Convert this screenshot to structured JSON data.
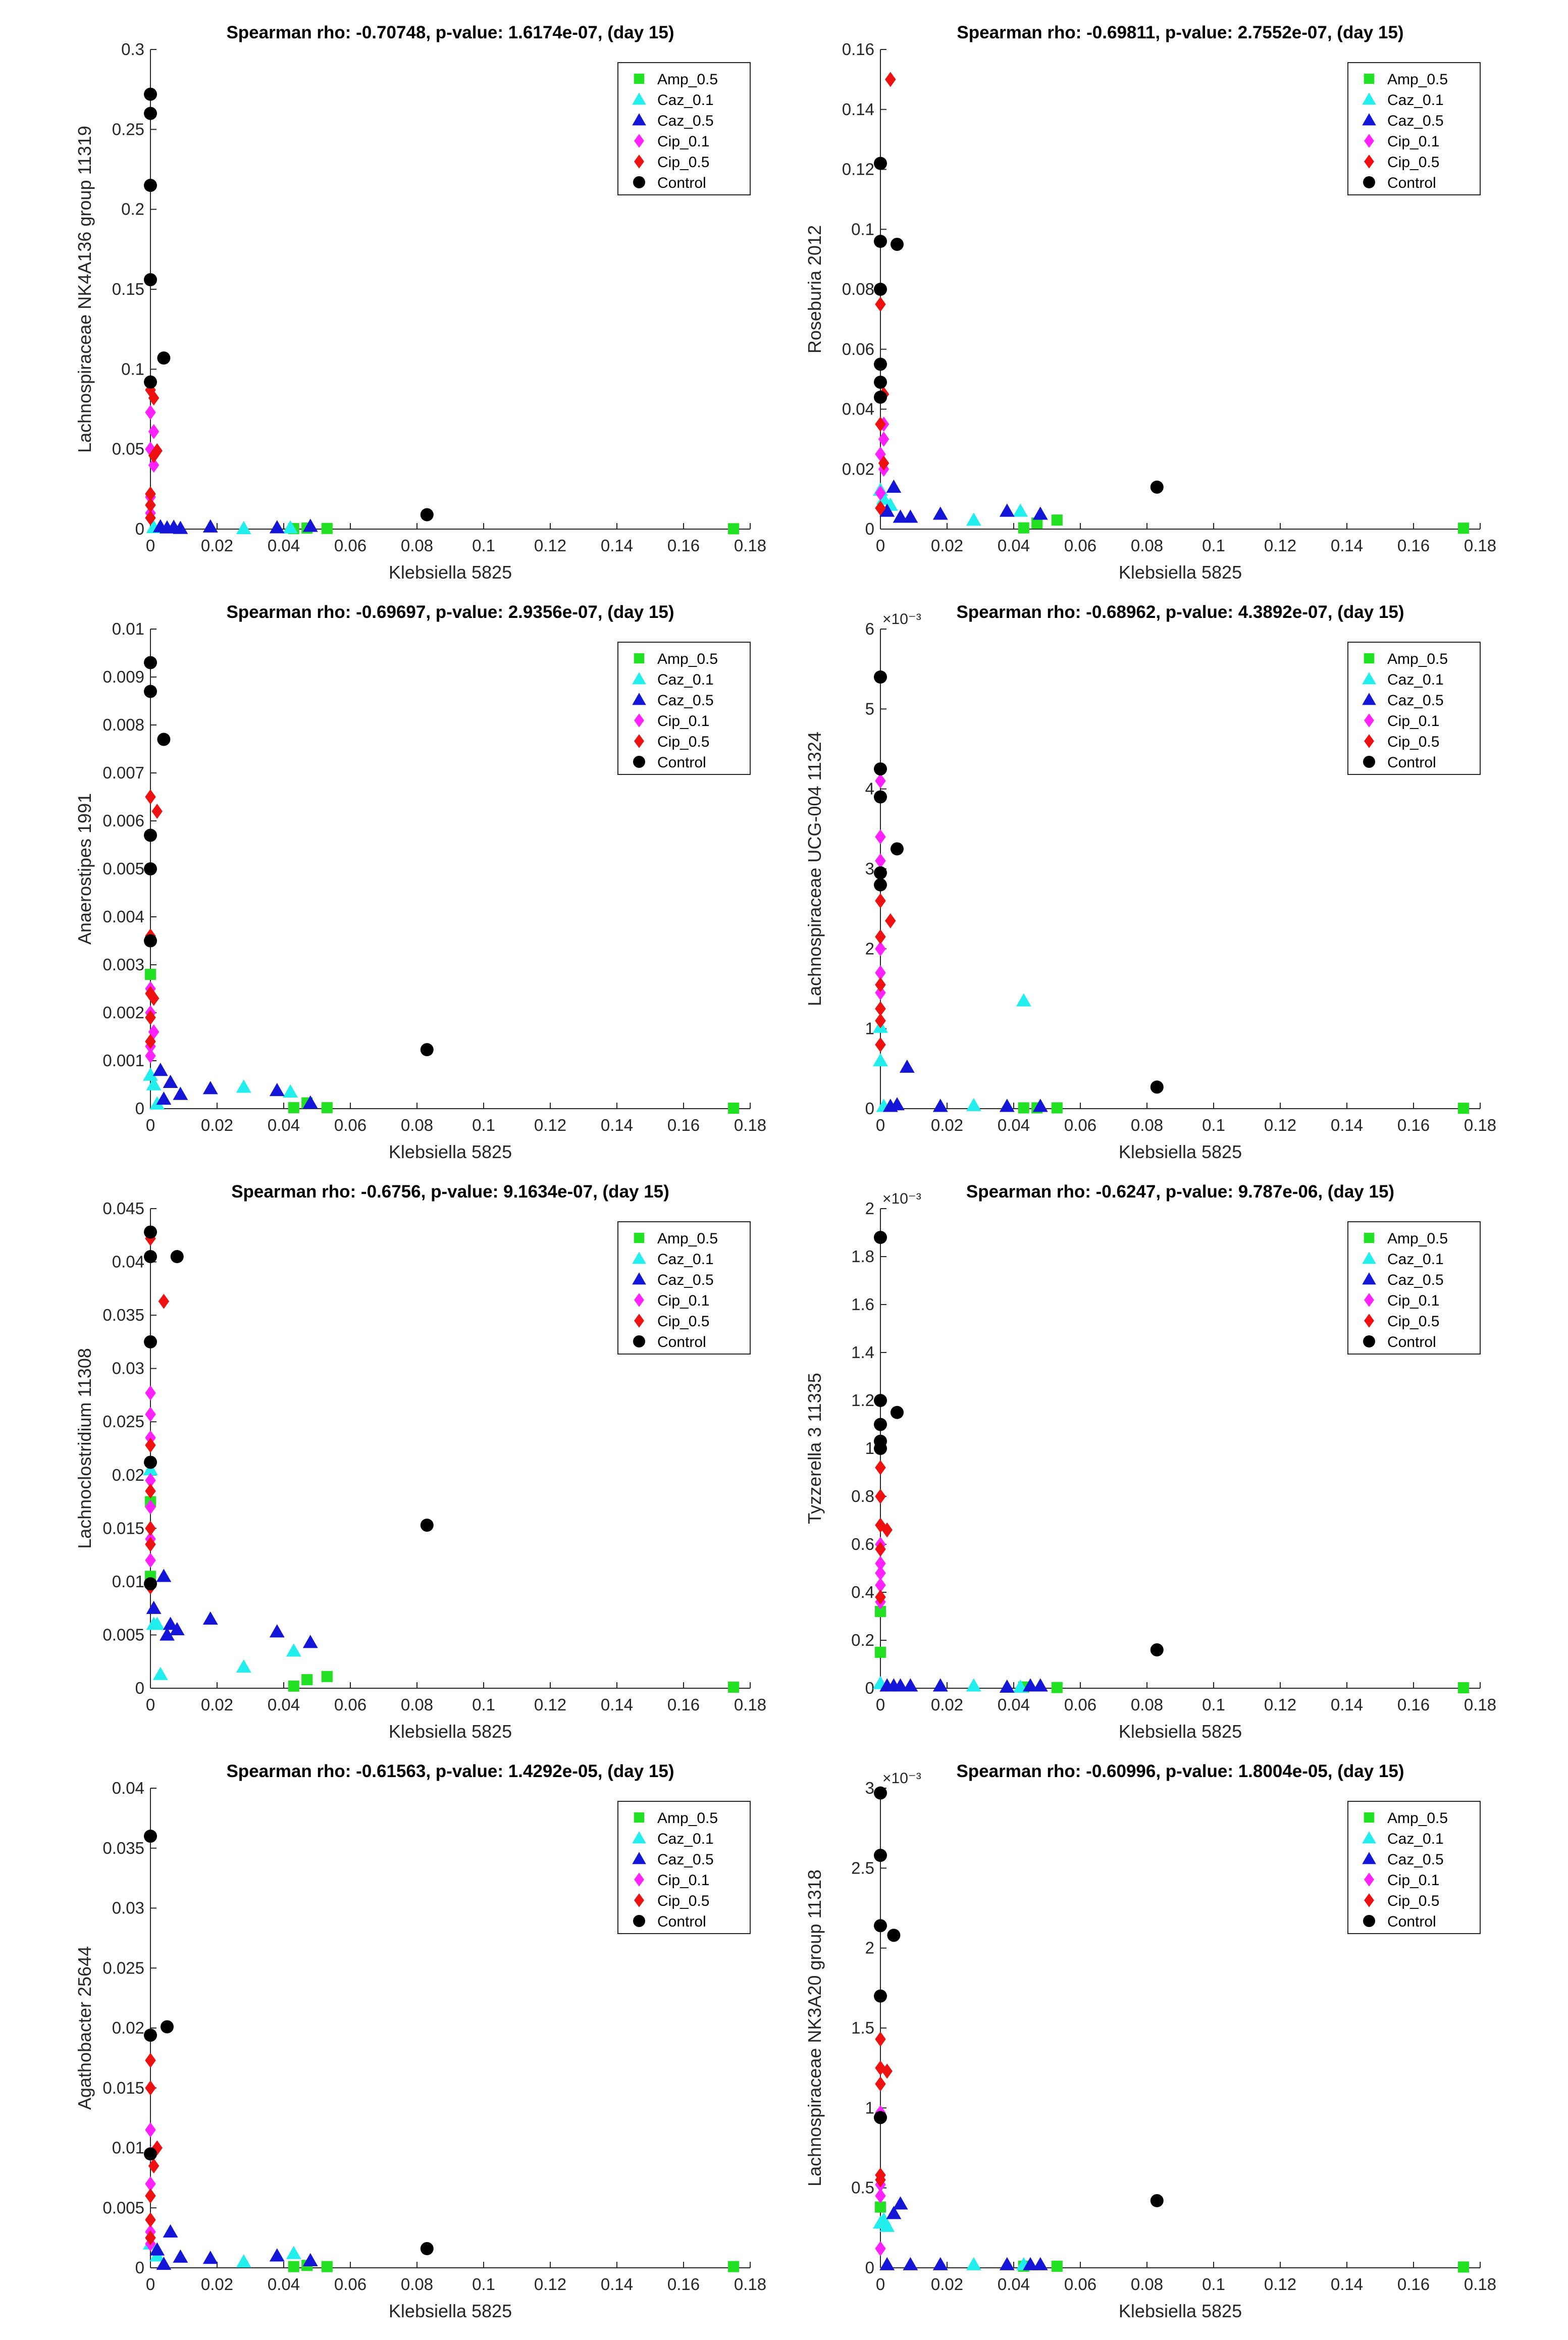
{
  "figure": {
    "xlabel": "Klebsiella 5825",
    "legend_labels": [
      "Amp_0.5",
      "Caz_0.1",
      "Caz_0.5",
      "Cip_0.1",
      "Cip_0.5",
      "Control"
    ],
    "series_style": {
      "Amp_0.5": {
        "color": "#22e022",
        "marker": "square"
      },
      "Caz_0.1": {
        "color": "#22eeee",
        "marker": "triangle"
      },
      "Caz_0.5": {
        "color": "#1515d8",
        "marker": "triangle"
      },
      "Cip_0.1": {
        "color": "#ff22ff",
        "marker": "diamond"
      },
      "Cip_0.5": {
        "color": "#ee1111",
        "marker": "diamond"
      },
      "Control": {
        "color": "#000000",
        "marker": "circle"
      }
    }
  },
  "chart_data": [
    {
      "type": "scatter",
      "title": "Spearman rho: -0.70748, p-value: 1.6174e-07, (day 15)",
      "xlabel": "Klebsiella 5825",
      "ylabel": "Lachnospiraceae NK4A136 group 11319",
      "xlim": [
        0,
        0.18
      ],
      "ylim": [
        0,
        0.3
      ],
      "yticks": [
        "0",
        "0.05",
        "0.1",
        "0.15",
        "0.2",
        "0.25",
        "0.3"
      ],
      "y_exponent": "",
      "series": [
        {
          "name": "Amp_0.5",
          "x": [
            0.043,
            0.047,
            0.053,
            0.175
          ],
          "y": [
            0.0003,
            0.0006,
            0.0004,
            0.0002
          ]
        },
        {
          "name": "Caz_0.1",
          "x": [
            0.001,
            0.028,
            0.042
          ],
          "y": [
            0.001,
            0.0004,
            0.0008
          ]
        },
        {
          "name": "Caz_0.5",
          "x": [
            0.003,
            0.005,
            0.007,
            0.009,
            0.018,
            0.038,
            0.048
          ],
          "y": [
            0.0015,
            0.0008,
            0.0012,
            0.0005,
            0.0014,
            0.0009,
            0.0018
          ]
        },
        {
          "name": "Cip_0.1",
          "x": [
            0,
            0.001,
            0,
            0.001,
            0,
            0
          ],
          "y": [
            0.073,
            0.061,
            0.05,
            0.04,
            0.02,
            0.01
          ]
        },
        {
          "name": "Cip_0.5",
          "x": [
            0,
            0.001,
            0.002,
            0.001,
            0,
            0,
            0
          ],
          "y": [
            0.087,
            0.082,
            0.049,
            0.046,
            0.022,
            0.015,
            0.007
          ]
        },
        {
          "name": "Control",
          "x": [
            0,
            0,
            0,
            0,
            0.004,
            0,
            0.083
          ],
          "y": [
            0.272,
            0.26,
            0.215,
            0.156,
            0.107,
            0.092,
            0.009
          ]
        }
      ]
    },
    {
      "type": "scatter",
      "title": "Spearman rho: -0.69811, p-value: 2.7552e-07, (day 15)",
      "xlabel": "Klebsiella 5825",
      "ylabel": "Roseburia 2012",
      "xlim": [
        0,
        0.18
      ],
      "ylim": [
        0,
        0.16
      ],
      "yticks": [
        "0",
        "0.02",
        "0.04",
        "0.06",
        "0.08",
        "0.1",
        "0.12",
        "0.14",
        "0.16"
      ],
      "y_exponent": "",
      "series": [
        {
          "name": "Amp_0.5",
          "x": [
            0.043,
            0.047,
            0.053,
            0.175
          ],
          "y": [
            0.0004,
            0.002,
            0.003,
            0.0003
          ]
        },
        {
          "name": "Caz_0.1",
          "x": [
            0,
            0.001,
            0.003,
            0.028,
            0.042
          ],
          "y": [
            0.013,
            0.01,
            0.008,
            0.003,
            0.006
          ]
        },
        {
          "name": "Caz_0.5",
          "x": [
            0.002,
            0.004,
            0.006,
            0.009,
            0.018,
            0.038,
            0.048
          ],
          "y": [
            0.006,
            0.014,
            0.004,
            0.004,
            0.005,
            0.006,
            0.005
          ]
        },
        {
          "name": "Cip_0.1",
          "x": [
            0.001,
            0.001,
            0,
            0.001,
            0
          ],
          "y": [
            0.035,
            0.03,
            0.025,
            0.02,
            0.012
          ]
        },
        {
          "name": "Cip_0.5",
          "x": [
            0.003,
            0,
            0.001,
            0,
            0.001,
            0
          ],
          "y": [
            0.15,
            0.075,
            0.045,
            0.035,
            0.022,
            0.007
          ]
        },
        {
          "name": "Control",
          "x": [
            0,
            0,
            0.005,
            0,
            0,
            0,
            0,
            0.083
          ],
          "y": [
            0.122,
            0.096,
            0.095,
            0.08,
            0.055,
            0.049,
            0.044,
            0.014
          ]
        }
      ]
    },
    {
      "type": "scatter",
      "title": "Spearman rho: -0.69697, p-value: 2.9356e-07, (day 15)",
      "xlabel": "Klebsiella 5825",
      "ylabel": "Anaerostipes 1991",
      "xlim": [
        0,
        0.18
      ],
      "ylim": [
        0,
        0.01
      ],
      "yticks": [
        "0",
        "0.001",
        "0.002",
        "0.003",
        "0.004",
        "0.005",
        "0.006",
        "0.007",
        "0.008",
        "0.009",
        "0.01"
      ],
      "y_exponent": "",
      "series": [
        {
          "name": "Amp_0.5",
          "x": [
            0,
            0.043,
            0.047,
            0.053,
            0.175
          ],
          "y": [
            0.0028,
            2e-05,
            0.00012,
            2e-05,
            1e-05
          ]
        },
        {
          "name": "Caz_0.1",
          "x": [
            0,
            0.001,
            0.002,
            0.028,
            0.042
          ],
          "y": [
            0.0007,
            0.0005,
            0.0001,
            0.00045,
            0.00035
          ]
        },
        {
          "name": "Caz_0.5",
          "x": [
            0.003,
            0.004,
            0.006,
            0.009,
            0.018,
            0.038,
            0.048
          ],
          "y": [
            0.0008,
            0.0002,
            0.00055,
            0.0003,
            0.00042,
            0.00038,
            0.00012
          ]
        },
        {
          "name": "Cip_0.1",
          "x": [
            0,
            0,
            0.001,
            0,
            0
          ],
          "y": [
            0.0025,
            0.002,
            0.0016,
            0.0013,
            0.0011
          ]
        },
        {
          "name": "Cip_0.5",
          "x": [
            0,
            0.002,
            0,
            0,
            0.001,
            0,
            0
          ],
          "y": [
            0.0065,
            0.0062,
            0.0036,
            0.0024,
            0.0023,
            0.0019,
            0.0014
          ]
        },
        {
          "name": "Control",
          "x": [
            0,
            0,
            0.004,
            0,
            0,
            0,
            0.083
          ],
          "y": [
            0.0093,
            0.0087,
            0.0077,
            0.0057,
            0.005,
            0.0035,
            0.00123
          ]
        }
      ]
    },
    {
      "type": "scatter",
      "title": "Spearman rho: -0.68962, p-value: 4.3892e-07, (day 15)",
      "xlabel": "Klebsiella 5825",
      "ylabel": "Lachnospiraceae UCG-004 11324",
      "xlim": [
        0,
        0.18
      ],
      "ylim": [
        0,
        6
      ],
      "yticks": [
        "0",
        "1",
        "2",
        "3",
        "4",
        "5",
        "6"
      ],
      "y_exponent": "×10⁻³",
      "series": [
        {
          "name": "Amp_0.5",
          "x": [
            0.043,
            0.047,
            0.053,
            0.175
          ],
          "y": [
            0.01,
            0.01,
            0.01,
            0.005
          ]
        },
        {
          "name": "Caz_0.1",
          "x": [
            0,
            0,
            0.001,
            0.028,
            0.043
          ],
          "y": [
            1.02,
            0.6,
            0.03,
            0.04,
            1.35
          ]
        },
        {
          "name": "Caz_0.5",
          "x": [
            0.003,
            0.005,
            0.008,
            0.018,
            0.038,
            0.048
          ],
          "y": [
            0.03,
            0.05,
            0.52,
            0.03,
            0.03,
            0.03
          ]
        },
        {
          "name": "Cip_0.1",
          "x": [
            0,
            0,
            0,
            0,
            0,
            0
          ],
          "y": [
            4.1,
            3.4,
            3.1,
            2.0,
            1.7,
            1.45
          ]
        },
        {
          "name": "Cip_0.5",
          "x": [
            0,
            0.003,
            0,
            0,
            0,
            0,
            0
          ],
          "y": [
            2.6,
            2.35,
            2.15,
            1.55,
            1.25,
            1.1,
            0.8
          ]
        },
        {
          "name": "Control",
          "x": [
            0,
            0,
            0,
            0.005,
            0,
            0,
            0.083
          ],
          "y": [
            5.4,
            4.25,
            3.9,
            3.25,
            2.95,
            2.8,
            0.27
          ]
        }
      ]
    },
    {
      "type": "scatter",
      "title": "Spearman rho: -0.6756, p-value: 9.1634e-07, (day 15)",
      "xlabel": "Klebsiella 5825",
      "ylabel": "Lachnoclostridium 11308",
      "xlim": [
        0,
        0.18
      ],
      "ylim": [
        0,
        0.045
      ],
      "yticks": [
        "0",
        "0.005",
        "0.01",
        "0.015",
        "0.02",
        "0.025",
        "0.03",
        "0.035",
        "0.04",
        "0.045"
      ],
      "y_exponent": "",
      "series": [
        {
          "name": "Amp_0.5",
          "x": [
            0,
            0,
            0.043,
            0.047,
            0.053,
            0.175
          ],
          "y": [
            0.0175,
            0.0105,
            0.0002,
            0.0008,
            0.0011,
            0.0001
          ]
        },
        {
          "name": "Caz_0.1",
          "x": [
            0,
            0.001,
            0.002,
            0.003,
            0.028,
            0.043
          ],
          "y": [
            0.0205,
            0.006,
            0.006,
            0.0013,
            0.002,
            0.0035
          ]
        },
        {
          "name": "Caz_0.5",
          "x": [
            0.001,
            0.004,
            0.005,
            0.006,
            0.008,
            0.018,
            0.038,
            0.048
          ],
          "y": [
            0.0075,
            0.0105,
            0.005,
            0.006,
            0.0055,
            0.0065,
            0.0053,
            0.0043
          ]
        },
        {
          "name": "Cip_0.1",
          "x": [
            0,
            0,
            0,
            0,
            0,
            0,
            0
          ],
          "y": [
            0.0277,
            0.0257,
            0.0235,
            0.0195,
            0.017,
            0.014,
            0.012
          ]
        },
        {
          "name": "Cip_0.5",
          "x": [
            0,
            0.004,
            0,
            0,
            0,
            0,
            0
          ],
          "y": [
            0.0422,
            0.0363,
            0.0228,
            0.0185,
            0.015,
            0.0135,
            0.0095
          ]
        },
        {
          "name": "Control",
          "x": [
            0,
            0,
            0.008,
            0,
            0,
            0,
            0.083
          ],
          "y": [
            0.0428,
            0.0405,
            0.0405,
            0.0325,
            0.0212,
            0.0098,
            0.0153
          ]
        }
      ]
    },
    {
      "type": "scatter",
      "title": "Spearman rho: -0.6247, p-value: 9.787e-06, (day 15)",
      "xlabel": "Klebsiella 5825",
      "ylabel": "Tyzzerella 3 11335",
      "xlim": [
        0,
        0.18
      ],
      "ylim": [
        0,
        2
      ],
      "yticks": [
        "0",
        "0.2",
        "0.4",
        "0.6",
        "0.8",
        "1",
        "1.2",
        "1.4",
        "1.6",
        "1.8",
        "2"
      ],
      "y_exponent": "×10⁻³",
      "series": [
        {
          "name": "Amp_0.5",
          "x": [
            0,
            0,
            0.043,
            0.053,
            0.175
          ],
          "y": [
            0.32,
            0.15,
            0.005,
            0.003,
            0.002
          ]
        },
        {
          "name": "Caz_0.1",
          "x": [
            0,
            0.028,
            0.042
          ],
          "y": [
            0.02,
            0.01,
            0.005
          ]
        },
        {
          "name": "Caz_0.5",
          "x": [
            0.002,
            0.004,
            0.006,
            0.009,
            0.018,
            0.038,
            0.045,
            0.048
          ],
          "y": [
            0.01,
            0.01,
            0.01,
            0.01,
            0.01,
            0.005,
            0.01,
            0.01
          ]
        },
        {
          "name": "Cip_0.1",
          "x": [
            0,
            0,
            0,
            0,
            0
          ],
          "y": [
            0.6,
            0.52,
            0.48,
            0.43,
            0.36
          ]
        },
        {
          "name": "Cip_0.5",
          "x": [
            0,
            0,
            0.002,
            0,
            0,
            0
          ],
          "y": [
            0.92,
            0.8,
            0.66,
            0.68,
            0.58,
            0.38
          ]
        },
        {
          "name": "Control",
          "x": [
            0,
            0.005,
            0,
            0,
            0,
            0,
            0.083
          ],
          "y": [
            1.88,
            1.15,
            1.2,
            1.1,
            1.03,
            1.0,
            0.16
          ]
        }
      ]
    },
    {
      "type": "scatter",
      "title": "Spearman rho: -0.61563, p-value: 1.4292e-05, (day 15)",
      "xlabel": "Klebsiella 5825",
      "ylabel": "Agathobacter 25644",
      "xlim": [
        0,
        0.18
      ],
      "ylim": [
        0,
        0.04
      ],
      "yticks": [
        "0",
        "0.005",
        "0.01",
        "0.015",
        "0.02",
        "0.025",
        "0.03",
        "0.035",
        "0.04"
      ],
      "y_exponent": "",
      "series": [
        {
          "name": "Amp_0.5",
          "x": [
            0.043,
            0.047,
            0.053,
            0.175
          ],
          "y": [
            0.0001,
            0.0002,
            0.0001,
            0.0001
          ]
        },
        {
          "name": "Caz_0.1",
          "x": [
            0,
            0.002,
            0.028,
            0.043
          ],
          "y": [
            0.002,
            0.001,
            0.0005,
            0.0012
          ]
        },
        {
          "name": "Caz_0.5",
          "x": [
            0.002,
            0.004,
            0.006,
            0.009,
            0.018,
            0.038,
            0.048
          ],
          "y": [
            0.0015,
            0.0003,
            0.003,
            0.0009,
            0.0008,
            0.001,
            0.0006
          ]
        },
        {
          "name": "Cip_0.1",
          "x": [
            0,
            0,
            0,
            0,
            0
          ],
          "y": [
            0.0115,
            0.0095,
            0.007,
            0.003,
            0.002
          ]
        },
        {
          "name": "Cip_0.5",
          "x": [
            0,
            0,
            0.002,
            0.001,
            0,
            0,
            0
          ],
          "y": [
            0.0173,
            0.015,
            0.01,
            0.0085,
            0.006,
            0.004,
            0.0025
          ]
        },
        {
          "name": "Control",
          "x": [
            0,
            0.005,
            0,
            0,
            0.083
          ],
          "y": [
            0.036,
            0.0201,
            0.0194,
            0.0095,
            0.0016
          ]
        }
      ]
    },
    {
      "type": "scatter",
      "title": "Spearman rho: -0.60996, p-value: 1.8004e-05, (day 15)",
      "xlabel": "Klebsiella 5825",
      "ylabel": "Lachnospiraceae NK3A20 group 11318",
      "xlim": [
        0,
        0.18
      ],
      "ylim": [
        0,
        3
      ],
      "yticks": [
        "0",
        "0.5",
        "1",
        "1.5",
        "2",
        "2.5",
        "3"
      ],
      "y_exponent": "×10⁻³",
      "series": [
        {
          "name": "Amp_0.5",
          "x": [
            0,
            0.043,
            0.053,
            0.175
          ],
          "y": [
            0.38,
            0.01,
            0.01,
            0.005
          ]
        },
        {
          "name": "Caz_0.1",
          "x": [
            0,
            0.001,
            0.002,
            0.028,
            0.043
          ],
          "y": [
            0.28,
            0.3,
            0.26,
            0.02,
            0.02
          ]
        },
        {
          "name": "Caz_0.5",
          "x": [
            0.002,
            0.004,
            0.006,
            0.009,
            0.018,
            0.038,
            0.045,
            0.048
          ],
          "y": [
            0.02,
            0.34,
            0.4,
            0.02,
            0.02,
            0.02,
            0.02,
            0.02
          ]
        },
        {
          "name": "Cip_0.1",
          "x": [
            0,
            0,
            0,
            0
          ],
          "y": [
            0.97,
            0.52,
            0.45,
            0.12
          ]
        },
        {
          "name": "Cip_0.5",
          "x": [
            0,
            0,
            0.002,
            0,
            0,
            0
          ],
          "y": [
            1.43,
            1.25,
            1.23,
            1.15,
            0.58,
            0.55
          ]
        },
        {
          "name": "Control",
          "x": [
            0,
            0,
            0,
            0.004,
            0,
            0,
            0.083
          ],
          "y": [
            2.97,
            2.58,
            2.14,
            2.08,
            1.7,
            0.94,
            0.42
          ]
        }
      ]
    }
  ]
}
